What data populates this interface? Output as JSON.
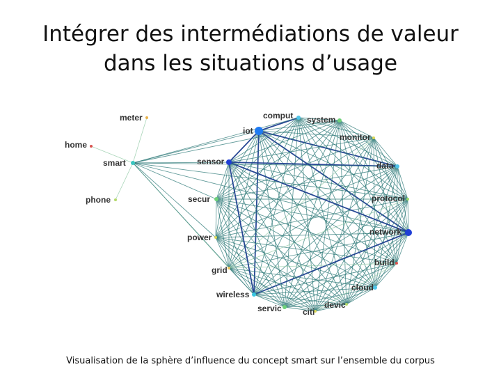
{
  "title": {
    "line1": "Intégrer des intermédiations de valeur",
    "line2": "dans les situations d’usage"
  },
  "caption": "Visualisation de la sphère d’influence du concept smart sur l’ensemble du corpus",
  "graph": {
    "nodes": [
      {
        "id": "meter",
        "label": "meter",
        "color": "#e8b24a"
      },
      {
        "id": "home",
        "label": "home",
        "color": "#d9534f"
      },
      {
        "id": "smart",
        "label": "smart",
        "color": "#39c6c0"
      },
      {
        "id": "phone",
        "label": "phone",
        "color": "#b5d96b"
      },
      {
        "id": "iot",
        "label": "iot",
        "color": "#1f7bf2"
      },
      {
        "id": "comput",
        "label": "comput",
        "color": "#4fc4e8"
      },
      {
        "id": "system",
        "label": "system",
        "color": "#6fd17a"
      },
      {
        "id": "monitor",
        "label": "monitor",
        "color": "#dcd85a"
      },
      {
        "id": "data",
        "label": "data",
        "color": "#4fc4e8"
      },
      {
        "id": "sensor",
        "label": "sensor",
        "color": "#1f3fd6"
      },
      {
        "id": "protocol",
        "label": "protocol",
        "color": "#9fdc6a"
      },
      {
        "id": "secur",
        "label": "secur",
        "color": "#6fd17a"
      },
      {
        "id": "network",
        "label": "network",
        "color": "#1f3fd6"
      },
      {
        "id": "power",
        "label": "power",
        "color": "#dcd85a"
      },
      {
        "id": "build",
        "label": "build",
        "color": "#d9534f"
      },
      {
        "id": "grid",
        "label": "grid",
        "color": "#e8c25a"
      },
      {
        "id": "wireless",
        "label": "wireless",
        "color": "#39c6e0"
      },
      {
        "id": "cloud",
        "label": "cloud",
        "color": "#4fc4e8"
      },
      {
        "id": "servic",
        "label": "servic",
        "color": "#6fd17a"
      },
      {
        "id": "devic",
        "label": "devic",
        "color": "#b5d96b"
      },
      {
        "id": "citi",
        "label": "citi",
        "color": "#dcd85a"
      }
    ],
    "strong_edge_color": "#1e3f8f",
    "medium_edge_color": "#2e7a78",
    "weak_edge_color": "#9fd0b0"
  }
}
